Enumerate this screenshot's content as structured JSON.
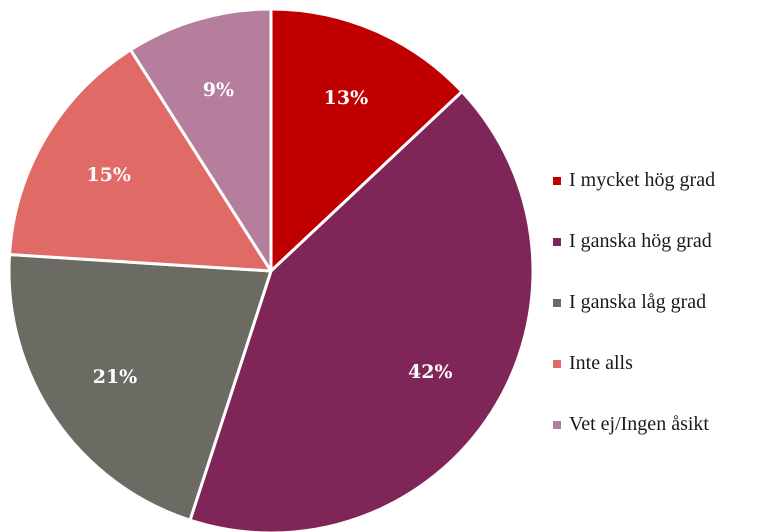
{
  "chart_data": {
    "type": "pie",
    "title": "",
    "legend_position": "right",
    "series": [
      {
        "name": "I mycket hög grad",
        "value": 13,
        "label": "13%",
        "color": "#C00000"
      },
      {
        "name": "I ganska hög grad",
        "value": 42,
        "label": "42%",
        "color": "#7F2557"
      },
      {
        "name": "I ganska låg grad",
        "value": 21,
        "label": "21%",
        "color": "#6B6B63"
      },
      {
        "name": "Inte alls",
        "value": 15,
        "label": "15%",
        "color": "#E06A66"
      },
      {
        "name": "Vet ej/Ingen åsikt",
        "value": 9,
        "label": "9%",
        "color": "#B47E9C"
      }
    ]
  }
}
